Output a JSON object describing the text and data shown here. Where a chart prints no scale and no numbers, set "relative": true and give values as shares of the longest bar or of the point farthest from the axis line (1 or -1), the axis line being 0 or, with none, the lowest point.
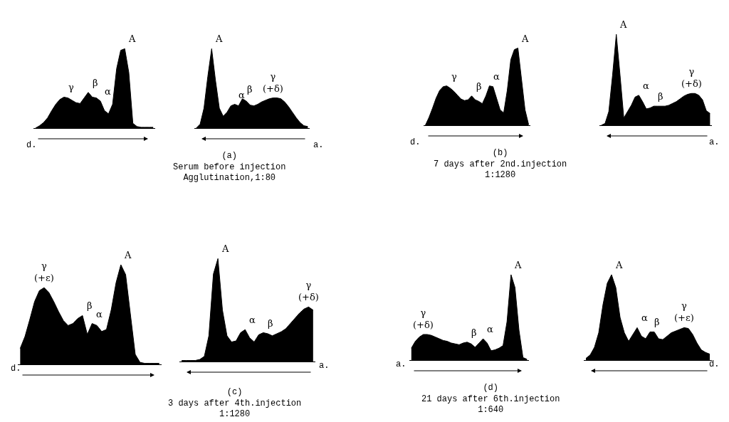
{
  "chart_data": [
    {
      "type": "area",
      "relative": true,
      "color": "#000000",
      "xlabel": "d.",
      "categories": [
        null,
        null,
        null,
        null,
        null,
        null,
        null,
        null,
        null,
        null,
        null,
        null,
        null,
        null,
        null,
        null,
        null,
        null,
        null,
        null,
        null,
        null,
        null,
        null,
        null,
        null,
        null,
        null,
        null,
        null
      ],
      "values": [
        0,
        0.03,
        0.07,
        0.13,
        0.22,
        0.3,
        0.36,
        0.39,
        0.38,
        0.35,
        0.32,
        0.31,
        0.38,
        0.45,
        0.39,
        0.38,
        0.34,
        0.22,
        0.18,
        0.3,
        0.75,
        0.98,
        1.0,
        0.7,
        0.06,
        0.02,
        0.01,
        0.01,
        0.01,
        0.01
      ],
      "annotations": [
        "γ",
        "β",
        "α",
        "A",
        "(a)\nSerum before injection\nAgglutination,1:80"
      ]
    },
    {
      "type": "area",
      "relative": true,
      "color": "#000000",
      "xlabel": "a.",
      "categories": [
        null,
        null,
        null,
        null,
        null,
        null,
        null,
        null,
        null,
        null,
        null,
        null,
        null,
        null,
        null,
        null,
        null,
        null,
        null,
        null,
        null,
        null,
        null,
        null,
        null,
        null,
        null,
        null,
        null,
        null
      ],
      "values": [
        0,
        0.05,
        0.25,
        0.65,
        1.0,
        0.6,
        0.25,
        0.15,
        0.2,
        0.28,
        0.3,
        0.28,
        0.37,
        0.34,
        0.29,
        0.28,
        0.3,
        0.33,
        0.35,
        0.37,
        0.38,
        0.38,
        0.37,
        0.33,
        0.27,
        0.2,
        0.13,
        0.07,
        0.03,
        0.02
      ],
      "annotations": [
        "A",
        "α",
        "β",
        "γ\n(+δ)"
      ]
    },
    {
      "type": "area",
      "relative": true,
      "color": "#000000",
      "xlabel": "d.",
      "categories": [
        null,
        null,
        null,
        null,
        null,
        null,
        null,
        null,
        null,
        null,
        null,
        null,
        null,
        null,
        null,
        null,
        null,
        null,
        null,
        null,
        null,
        null,
        null,
        null,
        null,
        null,
        null,
        null,
        null,
        null
      ],
      "values": [
        0,
        0.1,
        0.22,
        0.35,
        0.45,
        0.5,
        0.51,
        0.48,
        0.44,
        0.39,
        0.34,
        0.32,
        0.33,
        0.38,
        0.33,
        0.31,
        0.28,
        0.38,
        0.51,
        0.5,
        0.35,
        0.2,
        0.16,
        0.45,
        0.85,
        0.98,
        1.0,
        0.6,
        0.2,
        0.01
      ],
      "annotations": [
        "γ",
        "β",
        "α",
        "A",
        "(b)\n7 days after 2nd.injection\n1:1280"
      ]
    },
    {
      "type": "area",
      "relative": true,
      "color": "#000000",
      "xlabel": "a.",
      "categories": [
        null,
        null,
        null,
        null,
        null,
        null,
        null,
        null,
        null,
        null,
        null,
        null,
        null,
        null,
        null,
        null,
        null,
        null,
        null,
        null,
        null,
        null,
        null,
        null,
        null,
        null,
        null,
        null,
        null,
        null
      ],
      "values": [
        0,
        0.02,
        0.15,
        0.55,
        1.0,
        0.55,
        0.08,
        0.15,
        0.22,
        0.31,
        0.33,
        0.26,
        0.18,
        0.19,
        0.21,
        0.21,
        0.21,
        0.21,
        0.22,
        0.24,
        0.26,
        0.29,
        0.32,
        0.34,
        0.35,
        0.35,
        0.33,
        0.28,
        0.16,
        0.13
      ],
      "annotations": [
        "A",
        "α",
        "β",
        "γ\n(+δ)"
      ]
    },
    {
      "type": "area",
      "relative": true,
      "color": "#000000",
      "xlabel": "d.",
      "categories": [
        null,
        null,
        null,
        null,
        null,
        null,
        null,
        null,
        null,
        null,
        null,
        null,
        null,
        null,
        null,
        null,
        null,
        null,
        null,
        null,
        null,
        null,
        null,
        null,
        null,
        null,
        null,
        null,
        null,
        null
      ],
      "values": [
        0.16,
        0.28,
        0.45,
        0.63,
        0.74,
        0.77,
        0.72,
        0.63,
        0.53,
        0.44,
        0.39,
        0.41,
        0.46,
        0.49,
        0.3,
        0.41,
        0.39,
        0.33,
        0.35,
        0.55,
        0.82,
        1.0,
        0.9,
        0.5,
        0.1,
        0.02,
        0.01,
        0.01,
        0.01,
        0.01
      ],
      "annotations": [
        "γ\n(+ε)",
        "β",
        "α",
        "A",
        "(c)\n3 days after 4th.injection\n1:1280"
      ]
    },
    {
      "type": "area",
      "relative": true,
      "color": "#000000",
      "xlabel": "a.",
      "categories": [
        null,
        null,
        null,
        null,
        null,
        null,
        null,
        null,
        null,
        null,
        null,
        null,
        null,
        null,
        null,
        null,
        null,
        null,
        null,
        null,
        null,
        null,
        null,
        null,
        null,
        null,
        null,
        null,
        null,
        null
      ],
      "values": [
        0.01,
        0.01,
        0.01,
        0.01,
        0.02,
        0.05,
        0.25,
        0.85,
        1.0,
        0.5,
        0.25,
        0.19,
        0.2,
        0.28,
        0.31,
        0.23,
        0.19,
        0.26,
        0.28,
        0.27,
        0.25,
        0.27,
        0.29,
        0.32,
        0.37,
        0.42,
        0.47,
        0.51,
        0.53,
        0.5
      ],
      "annotations": [
        "A",
        "α",
        "β",
        "γ\n(+δ)"
      ]
    },
    {
      "type": "area",
      "relative": true,
      "color": "#000000",
      "xlabel": "a.",
      "categories": [
        null,
        null,
        null,
        null,
        null,
        null,
        null,
        null,
        null,
        null,
        null,
        null,
        null,
        null,
        null,
        null,
        null,
        null,
        null,
        null,
        null,
        null,
        null,
        null,
        null,
        null,
        null,
        null,
        null,
        null
      ],
      "values": [
        0.14,
        0.22,
        0.27,
        0.3,
        0.3,
        0.29,
        0.27,
        0.25,
        0.23,
        0.22,
        0.2,
        0.19,
        0.18,
        0.2,
        0.21,
        0.19,
        0.15,
        0.2,
        0.25,
        0.2,
        0.11,
        0.12,
        0.14,
        0.17,
        0.45,
        1.0,
        0.85,
        0.35,
        0.03,
        0.01
      ],
      "annotations": [
        "γ\n(+δ)",
        "β",
        "α",
        "A",
        "(d)\n21 days after 6th.injection\n1:640"
      ]
    },
    {
      "type": "area",
      "relative": true,
      "color": "#000000",
      "xlabel": "d.",
      "categories": [
        null,
        null,
        null,
        null,
        null,
        null,
        null,
        null,
        null,
        null,
        null,
        null,
        null,
        null,
        null,
        null,
        null,
        null,
        null,
        null,
        null,
        null,
        null,
        null,
        null,
        null,
        null,
        null,
        null,
        null
      ],
      "values": [
        0.02,
        0.06,
        0.15,
        0.32,
        0.65,
        0.9,
        1.0,
        0.85,
        0.5,
        0.32,
        0.22,
        0.3,
        0.38,
        0.28,
        0.25,
        0.33,
        0.33,
        0.25,
        0.24,
        0.28,
        0.32,
        0.34,
        0.36,
        0.38,
        0.37,
        0.3,
        0.2,
        0.12,
        0.09,
        0.07
      ],
      "annotations": [
        "A",
        "α",
        "β",
        "γ\n(+ε)"
      ]
    }
  ]
}
